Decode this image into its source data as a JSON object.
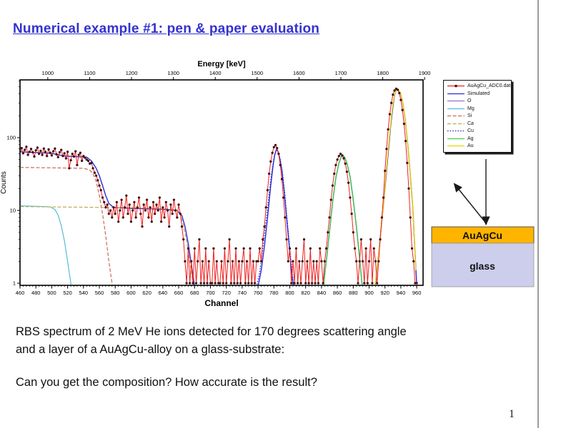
{
  "page": {
    "title": "Numerical example #1: pen & paper evaluation",
    "caption_line1": "RBS spectrum of 2 MeV He ions detected for 170 degrees scattering angle",
    "caption_line2": "and a layer of a AuAgCu-alloy on a glass-substrate:",
    "question": "Can you get the composition? How accurate is the result?",
    "page_number": "1"
  },
  "diagram": {
    "layer_label": "AuAgCu",
    "substrate_label": "glass",
    "layer_color": "#FFB400",
    "substrate_color": "#CDCDEC"
  },
  "chart_data": {
    "type": "line",
    "title": "",
    "xlabel_top": "Energy [keV]",
    "xlabel_bottom": "Channel",
    "ylabel": "Counts",
    "yscale": "log",
    "yticks": [
      1,
      10,
      100
    ],
    "ylim": [
      0.93,
      620
    ],
    "channel_ticks": [
      460,
      480,
      500,
      520,
      540,
      560,
      580,
      600,
      620,
      640,
      660,
      680,
      700,
      720,
      740,
      760,
      780,
      800,
      820,
      840,
      860,
      880,
      900,
      920,
      940,
      960
    ],
    "energy_ticks": [
      1000,
      1100,
      1200,
      1300,
      1400,
      1500,
      1600,
      1700,
      1800,
      1900
    ],
    "channel_axis_range": [
      460,
      968
    ],
    "energy_calibration": {
      "channel_at_1000keV": 495,
      "kev_per_channel": 1.895
    },
    "legend_position": "outside-top-right",
    "grid": false,
    "experimental": {
      "name": "AuAgCu_ADC0.dat",
      "line_color": "#ee2222",
      "marker_color": "#4a0d0d",
      "start_channel": 460,
      "channel_step": 2,
      "counts": [
        66,
        72,
        61,
        68,
        75,
        58,
        64,
        70,
        63,
        55,
        67,
        73,
        60,
        66,
        58,
        71,
        64,
        56,
        69,
        62,
        57,
        65,
        71,
        59,
        54,
        63,
        68,
        56,
        61,
        52,
        64,
        38,
        49,
        60,
        55,
        65,
        42,
        58,
        62,
        48,
        56,
        53,
        50,
        48,
        44,
        45,
        38,
        33,
        30,
        26,
        22,
        19,
        15,
        13,
        11,
        12,
        9,
        10,
        8,
        11,
        9,
        13,
        7,
        10,
        14,
        8,
        11,
        16,
        9,
        12,
        7,
        10,
        13,
        8,
        11,
        15,
        9,
        6,
        12,
        10,
        14,
        8,
        11,
        7,
        13,
        9,
        12,
        10,
        15,
        7,
        11,
        8,
        13,
        10,
        6,
        12,
        9,
        14,
        10,
        8,
        12,
        9,
        6,
        4,
        2,
        1,
        3,
        1,
        2,
        1,
        3,
        1,
        2,
        4,
        1,
        2,
        1,
        3,
        1,
        2,
        1,
        1,
        3,
        1,
        2,
        1,
        1,
        2,
        1,
        3,
        1,
        2,
        4,
        1,
        2,
        1,
        3,
        1,
        2,
        1,
        2,
        3,
        1,
        2,
        1,
        3,
        1,
        2,
        1,
        2,
        2,
        3,
        2,
        4,
        6,
        11,
        19,
        32,
        47,
        62,
        74,
        79,
        72,
        60,
        42,
        27,
        15,
        8,
        4,
        2,
        3,
        1,
        2,
        1,
        3,
        1,
        2,
        1,
        2,
        4,
        1,
        2,
        1,
        3,
        1,
        2,
        1,
        2,
        1,
        3,
        2,
        1,
        2,
        3,
        5,
        8,
        14,
        22,
        32,
        42,
        50,
        56,
        60,
        57,
        52,
        44,
        34,
        24,
        15,
        9,
        5,
        3,
        2,
        1,
        2,
        4,
        2,
        1,
        3,
        1,
        2,
        4,
        1,
        3,
        2,
        1,
        2,
        4,
        8,
        15,
        35,
        70,
        130,
        210,
        300,
        390,
        445,
        470,
        455,
        410,
        330,
        240,
        155,
        90,
        45,
        20,
        8,
        3,
        2,
        1,
        1
      ]
    },
    "series": [
      {
        "name": "Simulated",
        "color": "#2b2bd6",
        "style": "solid",
        "width": 1.4,
        "points": [
          [
            460,
            64
          ],
          [
            500,
            61
          ],
          [
            516,
            56
          ],
          [
            544,
            54
          ],
          [
            550,
            48
          ],
          [
            556,
            38
          ],
          [
            560,
            30
          ],
          [
            564,
            22
          ],
          [
            568,
            16
          ],
          [
            572,
            12.5
          ],
          [
            578,
            11
          ],
          [
            600,
            10.7
          ],
          [
            640,
            10.4
          ],
          [
            658,
            10
          ],
          [
            664,
            8.5
          ],
          [
            668,
            6
          ],
          [
            672,
            3.5
          ],
          [
            676,
            1.8
          ],
          [
            680,
            0.9
          ],
          [
            684,
            0.5
          ],
          [
            750,
            0.45
          ],
          [
            758,
            0.7
          ],
          [
            764,
            1.5
          ],
          [
            768,
            3.2
          ],
          [
            772,
            8
          ],
          [
            776,
            22
          ],
          [
            779,
            42
          ],
          [
            781,
            58
          ],
          [
            783,
            68
          ],
          [
            785,
            66
          ],
          [
            787,
            55
          ],
          [
            790,
            36
          ],
          [
            793,
            18
          ],
          [
            796,
            8
          ],
          [
            799,
            3.5
          ],
          [
            802,
            1.5
          ],
          [
            806,
            0.7
          ],
          [
            836,
            0.5
          ],
          [
            842,
            0.9
          ],
          [
            846,
            2
          ],
          [
            850,
            5
          ],
          [
            854,
            13
          ],
          [
            858,
            28
          ],
          [
            862,
            45
          ],
          [
            865,
            55
          ],
          [
            867,
            57
          ],
          [
            869,
            54
          ],
          [
            872,
            45
          ],
          [
            876,
            29
          ],
          [
            880,
            14
          ],
          [
            884,
            6
          ],
          [
            888,
            2.2
          ],
          [
            891,
            1
          ],
          [
            894,
            0.6
          ],
          [
            904,
            0.5
          ],
          [
            908,
            1
          ],
          [
            912,
            2.5
          ],
          [
            916,
            7
          ],
          [
            920,
            20
          ],
          [
            924,
            60
          ],
          [
            927,
            140
          ],
          [
            930,
            270
          ],
          [
            932,
            380
          ],
          [
            934,
            450
          ],
          [
            935,
            468
          ],
          [
            937,
            455
          ],
          [
            940,
            395
          ],
          [
            943,
            280
          ],
          [
            946,
            160
          ],
          [
            949,
            75
          ],
          [
            952,
            30
          ],
          [
            955,
            11
          ],
          [
            957,
            4
          ],
          [
            959,
            1.5
          ],
          [
            960,
            1
          ]
        ]
      },
      {
        "name": "O",
        "color": "#9070d0",
        "style": "solid",
        "width": 1.2,
        "points": []
      },
      {
        "name": "Mg",
        "color": "#58bcd8",
        "style": "solid",
        "width": 1.2,
        "points": [
          [
            460,
            11.6
          ],
          [
            498,
            11.2
          ],
          [
            504,
            10.3
          ],
          [
            508,
            8.6
          ],
          [
            512,
            6.2
          ],
          [
            516,
            3.8
          ],
          [
            520,
            2
          ],
          [
            524,
            1
          ],
          [
            528,
            0.55
          ]
        ]
      },
      {
        "name": "Si",
        "color": "#cc6a55",
        "style": "dashed",
        "width": 1.2,
        "points": [
          [
            460,
            39
          ],
          [
            540,
            38
          ],
          [
            548,
            36
          ],
          [
            552,
            32
          ],
          [
            556,
            25
          ],
          [
            560,
            16
          ],
          [
            564,
            9
          ],
          [
            568,
            4.5
          ],
          [
            572,
            2
          ],
          [
            576,
            1
          ],
          [
            579,
            0.6
          ]
        ]
      },
      {
        "name": "Ca",
        "color": "#c0a855",
        "style": "dashed",
        "width": 1.2,
        "points": [
          [
            460,
            11.3
          ],
          [
            600,
            10.9
          ],
          [
            648,
            10.5
          ],
          [
            658,
            10
          ],
          [
            662,
            8.8
          ],
          [
            666,
            6.2
          ],
          [
            670,
            3.8
          ],
          [
            674,
            2
          ],
          [
            678,
            1
          ],
          [
            682,
            0.55
          ]
        ]
      },
      {
        "name": "Cu",
        "color": "#2828c0",
        "style": "dotted",
        "width": 1.2,
        "points": [
          [
            756,
            0.7
          ],
          [
            762,
            1.4
          ],
          [
            766,
            3
          ],
          [
            770,
            7
          ],
          [
            774,
            17
          ],
          [
            777,
            32
          ],
          [
            780,
            52
          ],
          [
            782,
            64
          ],
          [
            783,
            68
          ],
          [
            785,
            65
          ],
          [
            788,
            50
          ],
          [
            791,
            32
          ],
          [
            794,
            16
          ],
          [
            797,
            7
          ],
          [
            800,
            3
          ],
          [
            803,
            1.4
          ],
          [
            806,
            0.7
          ]
        ]
      },
      {
        "name": "Ag",
        "color": "#44cc44",
        "style": "solid",
        "width": 1.3,
        "points": [
          [
            842,
            0.8
          ],
          [
            846,
            2
          ],
          [
            850,
            5
          ],
          [
            854,
            13
          ],
          [
            858,
            28
          ],
          [
            862,
            45
          ],
          [
            865,
            55
          ],
          [
            867,
            57
          ],
          [
            869,
            54
          ],
          [
            872,
            45
          ],
          [
            876,
            29
          ],
          [
            880,
            14
          ],
          [
            884,
            6
          ],
          [
            888,
            2.2
          ],
          [
            891,
            1
          ],
          [
            893,
            0.7
          ]
        ]
      },
      {
        "name": "Au",
        "color": "#e8d400",
        "style": "solid",
        "width": 1.3,
        "points": [
          [
            906,
            0.7
          ],
          [
            910,
            1.6
          ],
          [
            914,
            4
          ],
          [
            918,
            12
          ],
          [
            922,
            38
          ],
          [
            925,
            90
          ],
          [
            928,
            190
          ],
          [
            930,
            290
          ],
          [
            932,
            385
          ],
          [
            934,
            452
          ],
          [
            935,
            468
          ],
          [
            937,
            456
          ],
          [
            940,
            396
          ],
          [
            943,
            282
          ],
          [
            946,
            162
          ],
          [
            949,
            76
          ],
          [
            952,
            30
          ],
          [
            955,
            11
          ],
          [
            957,
            4
          ],
          [
            959,
            1.5
          ]
        ]
      }
    ]
  }
}
